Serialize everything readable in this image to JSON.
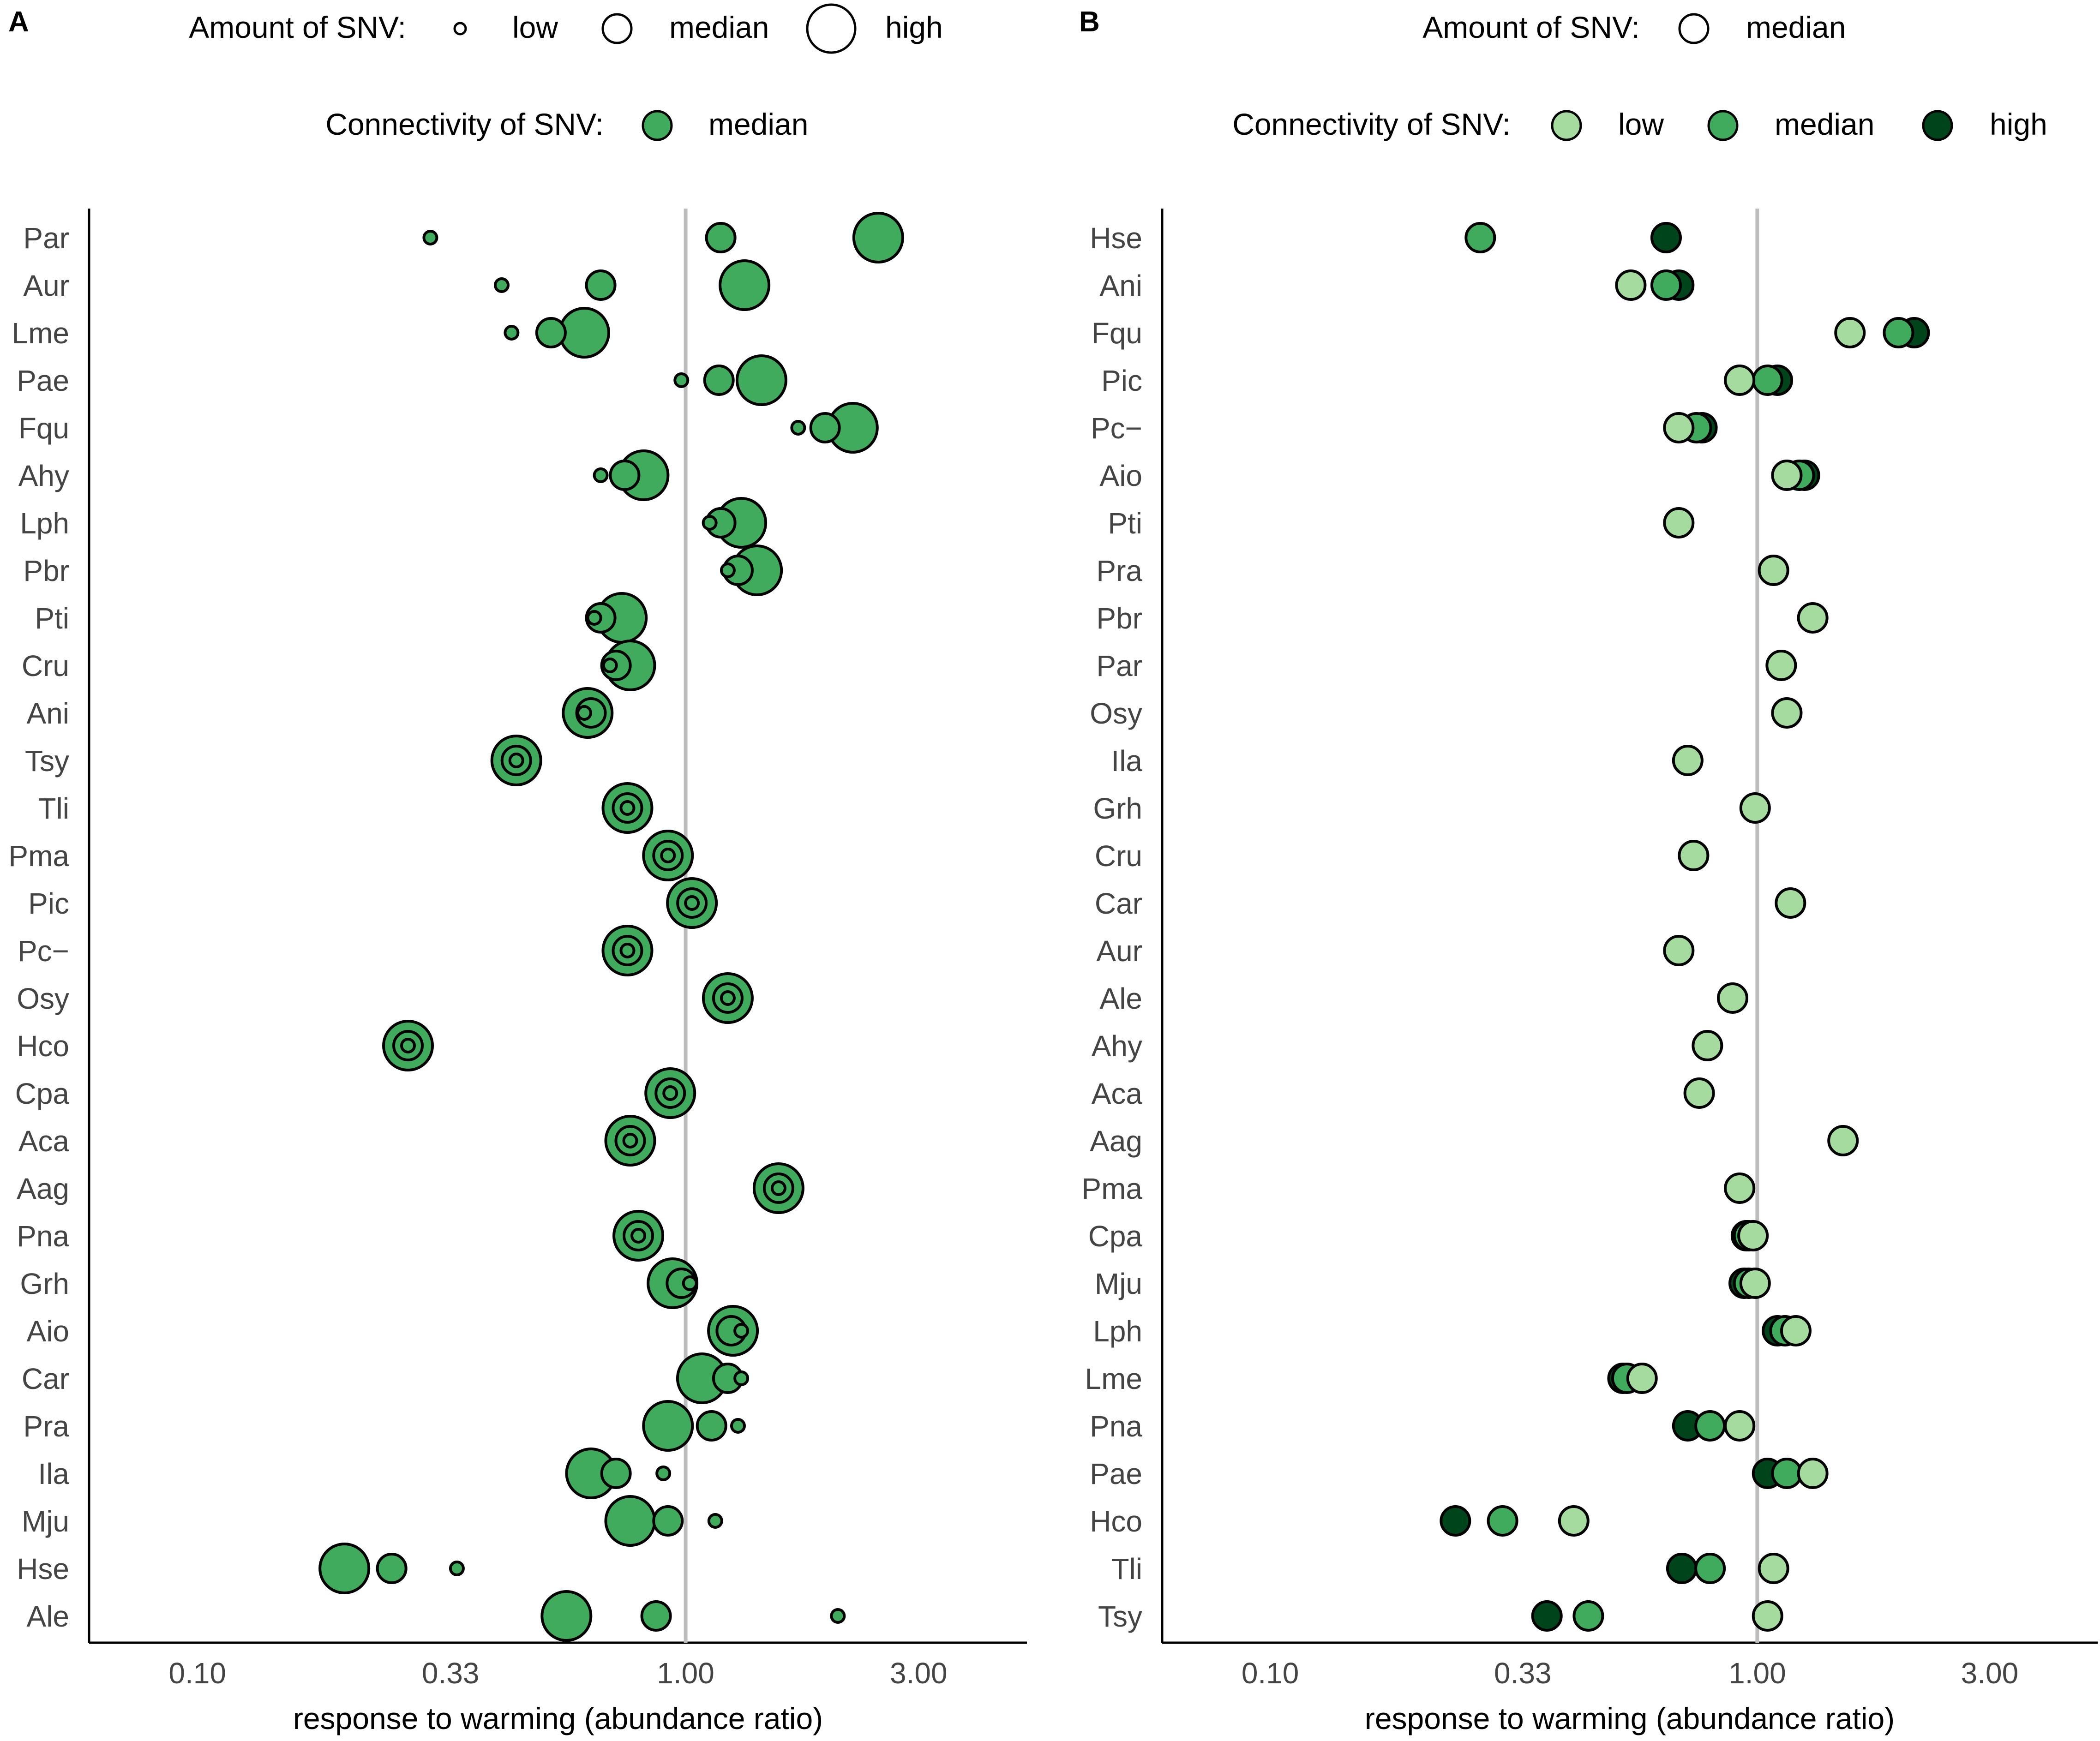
{
  "colors": {
    "low": "#a6dba0",
    "median": "#41ab5d",
    "high": "#00441b",
    "refline": "#bdbdbd",
    "axis": "#000000",
    "text": "#222222"
  },
  "chart_data": [
    {
      "type": "scatter",
      "panel_label": "A",
      "title": "",
      "xlabel": "response to warming (abundance ratio)",
      "ylabel": "",
      "x_scale": "log",
      "xlim": [
        0.06,
        5.0
      ],
      "x_ticks": [
        0.1,
        0.33,
        1.0,
        3.0
      ],
      "x_tick_labels": [
        "0.10",
        "0.33",
        "1.00",
        "3.00"
      ],
      "reference_line_x": 1.0,
      "legend": {
        "placement": "top",
        "amount_title": "Amount of SNV:",
        "amount_levels": [
          "low",
          "median",
          "high"
        ],
        "connectivity_title": "Connectivity of SNV:",
        "connectivity_levels": [
          "median"
        ]
      },
      "categories": [
        "Par",
        "Aur",
        "Lme",
        "Pae",
        "Fqu",
        "Ahy",
        "Lph",
        "Pbr",
        "Pti",
        "Cru",
        "Ani",
        "Tsy",
        "Tli",
        "Pma",
        "Pic",
        "Pc−",
        "Osy",
        "Hco",
        "Cpa",
        "Aca",
        "Aag",
        "Pna",
        "Grh",
        "Aio",
        "Car",
        "Pra",
        "Ila",
        "Mju",
        "Hse",
        "Ale"
      ],
      "series": [
        {
          "name": "low amount",
          "amount": "low",
          "connectivity": "median",
          "values": [
            0.3,
            0.42,
            0.44,
            0.98,
            1.7,
            0.67,
            1.12,
            1.22,
            0.65,
            0.7,
            0.62,
            0.45,
            0.76,
            0.92,
            1.03,
            0.76,
            1.22,
            0.27,
            0.93,
            0.77,
            1.55,
            0.8,
            1.02,
            1.3,
            1.3,
            1.28,
            0.9,
            1.15,
            0.34,
            2.05
          ]
        },
        {
          "name": "median amount",
          "amount": "median",
          "connectivity": "median",
          "values": [
            1.18,
            0.67,
            0.53,
            1.17,
            1.93,
            0.75,
            1.18,
            1.28,
            0.67,
            0.72,
            0.64,
            0.45,
            0.76,
            0.92,
            1.03,
            0.76,
            1.22,
            0.27,
            0.93,
            0.77,
            1.55,
            0.8,
            0.98,
            1.24,
            1.22,
            1.13,
            0.72,
            0.92,
            0.25,
            0.87
          ]
        },
        {
          "name": "high amount",
          "amount": "high",
          "connectivity": "median",
          "values": [
            2.48,
            1.32,
            0.62,
            1.43,
            2.2,
            0.82,
            1.3,
            1.4,
            0.74,
            0.77,
            0.63,
            0.45,
            0.76,
            0.92,
            1.03,
            0.76,
            1.22,
            0.27,
            0.93,
            0.77,
            1.55,
            0.8,
            0.94,
            1.25,
            1.08,
            0.92,
            0.64,
            0.77,
            0.2,
            0.57
          ]
        }
      ]
    },
    {
      "type": "scatter",
      "panel_label": "B",
      "title": "",
      "xlabel": "response to warming (abundance ratio)",
      "ylabel": "",
      "x_scale": "log",
      "xlim": [
        0.06,
        5.0
      ],
      "x_ticks": [
        0.1,
        0.33,
        1.0,
        3.0
      ],
      "x_tick_labels": [
        "0.10",
        "0.33",
        "1.00",
        "3.00"
      ],
      "reference_line_x": 1.0,
      "legend": {
        "placement": "top",
        "amount_title": "Amount of SNV:",
        "amount_levels": [
          "median"
        ],
        "connectivity_title": "Connectivity of SNV:",
        "connectivity_levels": [
          "low",
          "median",
          "high"
        ]
      },
      "categories": [
        "Hse",
        "Ani",
        "Fqu",
        "Pic",
        "Pc−",
        "Aio",
        "Pti",
        "Pra",
        "Pbr",
        "Par",
        "Osy",
        "Ila",
        "Grh",
        "Cru",
        "Car",
        "Aur",
        "Ale",
        "Ahy",
        "Aca",
        "Aag",
        "Pma",
        "Cpa",
        "Mju",
        "Lph",
        "Lme",
        "Pna",
        "Pae",
        "Hco",
        "Tli",
        "Tsy"
      ],
      "series": [
        {
          "name": "high connectivity",
          "amount": "median",
          "connectivity": "high",
          "values": [
            0.65,
            0.69,
            2.1,
            1.1,
            0.77,
            1.25,
            null,
            null,
            null,
            null,
            null,
            null,
            null,
            null,
            null,
            null,
            null,
            null,
            null,
            null,
            null,
            0.95,
            0.94,
            1.1,
            0.53,
            0.72,
            1.05,
            0.24,
            0.7,
            0.37
          ]
        },
        {
          "name": "median connectivity",
          "amount": "median",
          "connectivity": "median",
          "values": [
            0.27,
            0.65,
            1.95,
            1.05,
            0.75,
            1.22,
            null,
            null,
            null,
            null,
            null,
            null,
            null,
            null,
            null,
            null,
            null,
            null,
            null,
            null,
            null,
            0.96,
            0.96,
            1.14,
            0.54,
            0.8,
            1.15,
            0.3,
            0.8,
            0.45
          ]
        },
        {
          "name": "low connectivity",
          "amount": "median",
          "connectivity": "low",
          "values": [
            null,
            0.55,
            1.55,
            0.92,
            0.69,
            1.15,
            0.69,
            1.08,
            1.3,
            1.12,
            1.15,
            0.72,
            0.99,
            0.74,
            1.17,
            0.69,
            0.89,
            0.79,
            0.76,
            1.5,
            0.92,
            0.98,
            0.99,
            1.2,
            0.58,
            0.92,
            1.3,
            0.42,
            1.08,
            1.05
          ]
        }
      ]
    }
  ]
}
